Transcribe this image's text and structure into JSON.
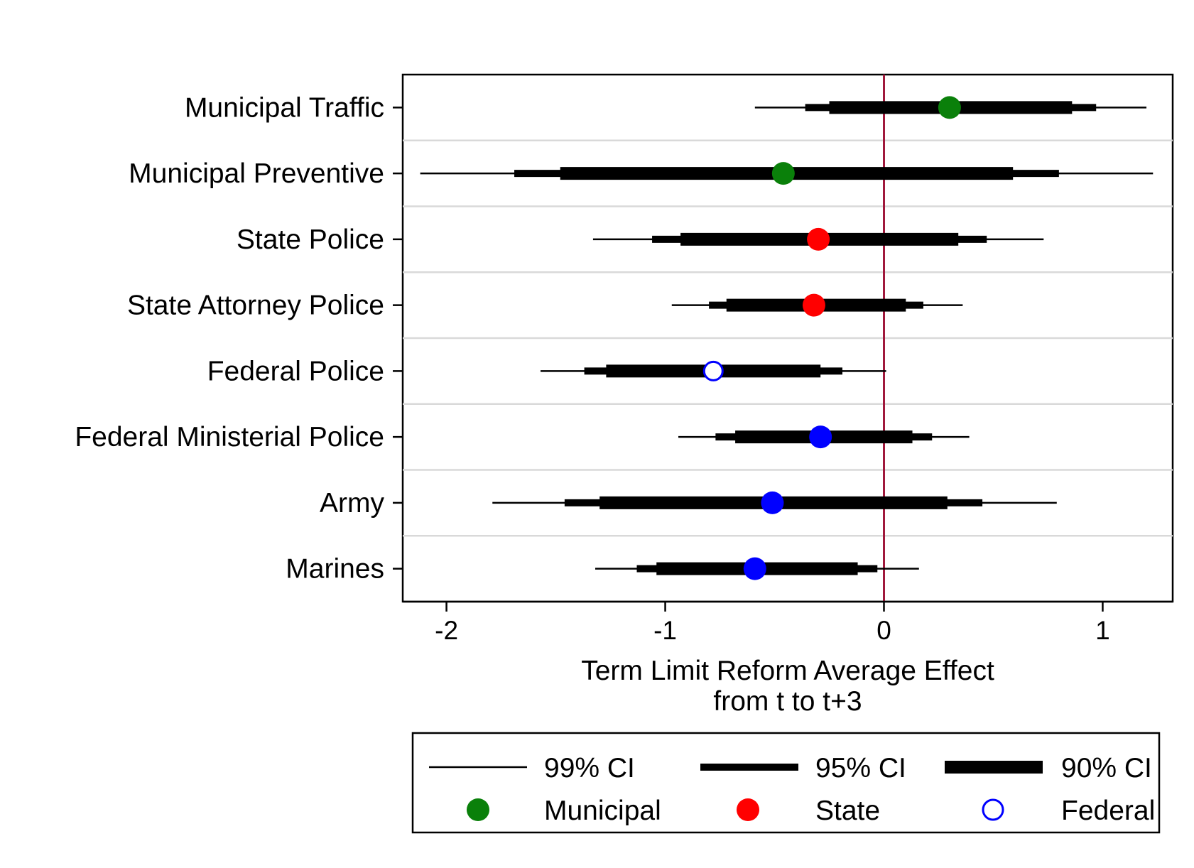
{
  "chart_data": {
    "type": "forest",
    "xlabel": [
      "Term Limit Reform Average Effect",
      "from t to t+3"
    ],
    "xlim": [
      -2.2,
      1.32
    ],
    "xticks": [
      -2,
      -1,
      0,
      1
    ],
    "xtick_labels": [
      "-2",
      "-1",
      "0",
      "1"
    ],
    "reference_line": {
      "x": 0,
      "color": "#a0193c"
    },
    "grid": "horizontal separators between rows",
    "level_colors": {
      "Municipal": "#0a800a",
      "State": "#ff0000",
      "Federal": "#0000ff"
    },
    "rows": [
      {
        "label": "Municipal Traffic",
        "level": "Municipal",
        "estimate": 0.3,
        "ci99": [
          -0.59,
          1.2
        ],
        "ci95": [
          -0.36,
          0.97
        ],
        "ci90": [
          -0.25,
          0.86
        ],
        "hollow": false
      },
      {
        "label": "Municipal Preventive",
        "level": "Municipal",
        "estimate": -0.46,
        "ci99": [
          -2.12,
          1.23
        ],
        "ci95": [
          -1.69,
          0.8
        ],
        "ci90": [
          -1.48,
          0.59
        ],
        "hollow": false
      },
      {
        "label": "State Police",
        "level": "State",
        "estimate": -0.3,
        "ci99": [
          -1.33,
          0.73
        ],
        "ci95": [
          -1.06,
          0.47
        ],
        "ci90": [
          -0.93,
          0.34
        ],
        "hollow": false
      },
      {
        "label": "State Attorney Police",
        "level": "State",
        "estimate": -0.32,
        "ci99": [
          -0.97,
          0.36
        ],
        "ci95": [
          -0.8,
          0.18
        ],
        "ci90": [
          -0.72,
          0.1
        ],
        "hollow": false
      },
      {
        "label": "Federal Police",
        "level": "Federal",
        "estimate": -0.78,
        "ci99": [
          -1.57,
          0.01
        ],
        "ci95": [
          -1.37,
          -0.19
        ],
        "ci90": [
          -1.27,
          -0.29
        ],
        "hollow": true
      },
      {
        "label": "Federal Ministerial Police",
        "level": "Federal",
        "estimate": -0.29,
        "ci99": [
          -0.94,
          0.39
        ],
        "ci95": [
          -0.77,
          0.22
        ],
        "ci90": [
          -0.68,
          0.13
        ],
        "hollow": false
      },
      {
        "label": "Army",
        "level": "Federal",
        "estimate": -0.51,
        "ci99": [
          -1.79,
          0.79
        ],
        "ci95": [
          -1.46,
          0.45
        ],
        "ci90": [
          -1.3,
          0.29
        ],
        "hollow": false
      },
      {
        "label": "Marines",
        "level": "Federal",
        "estimate": -0.59,
        "ci99": [
          -1.32,
          0.16
        ],
        "ci95": [
          -1.13,
          -0.03
        ],
        "ci90": [
          -1.04,
          -0.12
        ],
        "hollow": false
      }
    ],
    "legend": {
      "placement": "bottom",
      "ci_items": [
        {
          "label": "99% CI",
          "weight": "thin"
        },
        {
          "label": "95% CI",
          "weight": "medium"
        },
        {
          "label": "90% CI",
          "weight": "thick"
        }
      ],
      "marker_items": [
        {
          "label": "Municipal",
          "color": "#0a800a",
          "hollow": false
        },
        {
          "label": "State",
          "color": "#ff0000",
          "hollow": false
        },
        {
          "label": "Federal",
          "color": "#0000ff",
          "hollow": true
        }
      ]
    }
  }
}
